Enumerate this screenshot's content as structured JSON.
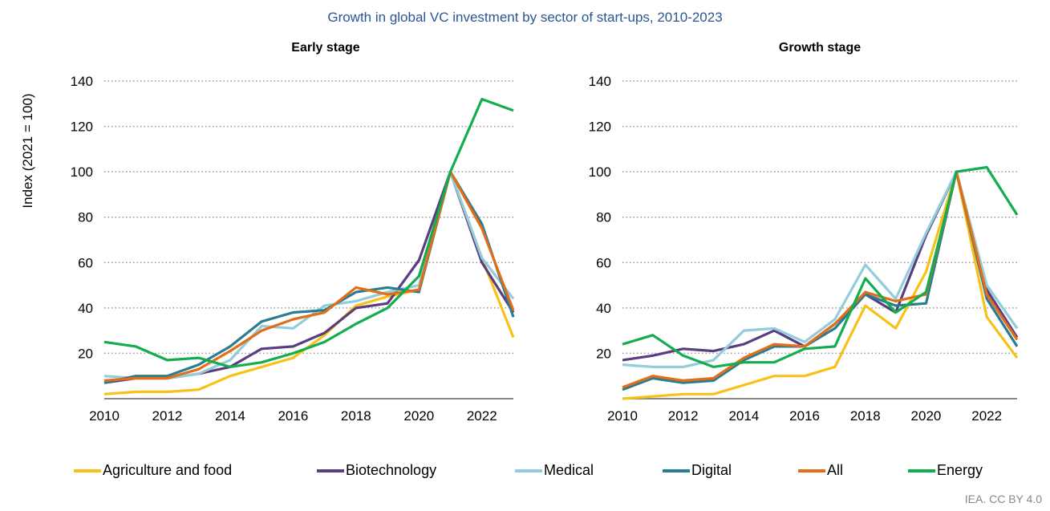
{
  "title": "Growth in global VC investment by sector of start-ups, 2010-2023",
  "credit": "IEA. CC BY 4.0",
  "colors": {
    "Agriculture and food": "#f7c117",
    "Biotechnology": "#5a3d80",
    "Medical": "#91cddb",
    "Digital": "#2a7c8f",
    "All": "#e36e19",
    "Energy": "#13ad50"
  },
  "chart_data": [
    {
      "type": "line",
      "title": "Early stage",
      "ylabel": "Index (2021 = 100)",
      "xlabel": "",
      "ylim": [
        0,
        140
      ],
      "yticks": [
        20,
        40,
        60,
        80,
        100,
        120,
        140
      ],
      "xticks": [
        2010,
        2012,
        2014,
        2016,
        2018,
        2020,
        2022
      ],
      "grid": true,
      "x": [
        2010,
        2011,
        2012,
        2013,
        2014,
        2015,
        2016,
        2017,
        2018,
        2019,
        2020,
        2021,
        2022,
        2023
      ],
      "series": [
        {
          "name": "Agriculture and food",
          "values": [
            2,
            3,
            3,
            4,
            10,
            14,
            18,
            28,
            41,
            45,
            48,
            100,
            62,
            27
          ]
        },
        {
          "name": "Biotechnology",
          "values": [
            7,
            9,
            9,
            11,
            14,
            22,
            23,
            29,
            40,
            42,
            61,
            100,
            60,
            38
          ]
        },
        {
          "name": "Medical",
          "values": [
            10,
            9,
            9,
            11,
            17,
            32,
            31,
            41,
            43,
            47,
            50,
            100,
            62,
            44
          ]
        },
        {
          "name": "Digital",
          "values": [
            7,
            10,
            10,
            15,
            23,
            34,
            38,
            39,
            47,
            49,
            47,
            100,
            77,
            36
          ]
        },
        {
          "name": "All",
          "values": [
            8,
            9,
            9,
            13,
            21,
            30,
            35,
            38,
            49,
            46,
            48,
            100,
            75,
            39
          ]
        },
        {
          "name": "Energy",
          "values": [
            25,
            23,
            17,
            18,
            14,
            16,
            20,
            25,
            33,
            40,
            54,
            100,
            132,
            127
          ]
        }
      ]
    },
    {
      "type": "line",
      "title": "Growth stage",
      "ylabel": "",
      "xlabel": "",
      "ylim": [
        0,
        140
      ],
      "yticks": [
        20,
        40,
        60,
        80,
        100,
        120,
        140
      ],
      "xticks": [
        2010,
        2012,
        2014,
        2016,
        2018,
        2020,
        2022
      ],
      "grid": true,
      "x": [
        2010,
        2011,
        2012,
        2013,
        2014,
        2015,
        2016,
        2017,
        2018,
        2019,
        2020,
        2021,
        2022,
        2023
      ],
      "series": [
        {
          "name": "Agriculture and food",
          "values": [
            0,
            1,
            2,
            2,
            6,
            10,
            10,
            14,
            41,
            31,
            56,
            100,
            36,
            18
          ]
        },
        {
          "name": "Biotechnology",
          "values": [
            17,
            19,
            22,
            21,
            24,
            30,
            23,
            33,
            46,
            38,
            72,
            100,
            48,
            27
          ]
        },
        {
          "name": "Medical",
          "values": [
            15,
            14,
            14,
            17,
            30,
            31,
            25,
            35,
            59,
            44,
            73,
            100,
            50,
            31
          ]
        },
        {
          "name": "Digital",
          "values": [
            4,
            9,
            7,
            8,
            17,
            23,
            23,
            31,
            46,
            41,
            42,
            100,
            44,
            23
          ]
        },
        {
          "name": "All",
          "values": [
            5,
            10,
            8,
            9,
            18,
            24,
            23,
            33,
            47,
            43,
            46,
            100,
            46,
            26
          ]
        },
        {
          "name": "Energy",
          "values": [
            24,
            28,
            19,
            14,
            16,
            16,
            22,
            23,
            53,
            38,
            47,
            100,
            102,
            81
          ]
        }
      ]
    }
  ],
  "legend": [
    "Agriculture and food",
    "Biotechnology",
    "Medical",
    "Digital",
    "All",
    "Energy"
  ]
}
